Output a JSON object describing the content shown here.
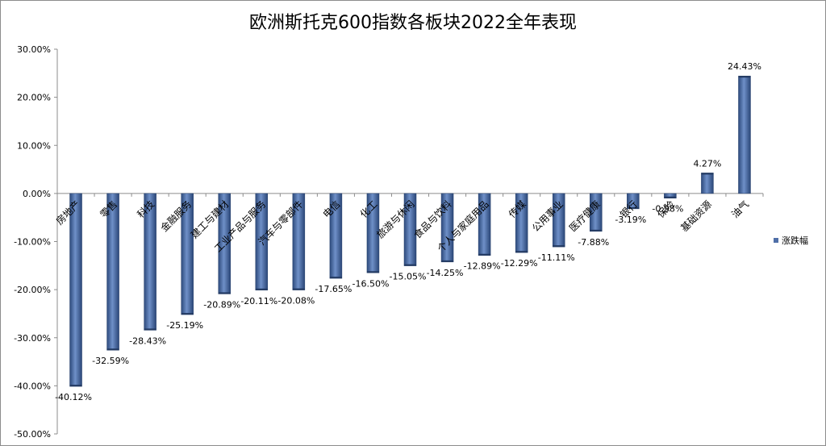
{
  "chart_data": {
    "type": "bar",
    "title": "欧洲斯托克600指数各板块2022全年表现",
    "categories": [
      "房地产",
      "零售",
      "科技",
      "金融服务",
      "建工与建材",
      "工业产品与服务",
      "汽车与零部件",
      "电信",
      "化工",
      "旅游与休闲",
      "食品与饮料",
      "个人与家庭用品",
      "传媒",
      "公用事业",
      "医疗健康",
      "银行",
      "保险",
      "基础资源",
      "油气"
    ],
    "series": [
      {
        "name": "涨跌幅",
        "values": [
          -40.12,
          -32.59,
          -28.43,
          -25.19,
          -20.89,
          -20.11,
          -20.08,
          -17.65,
          -16.5,
          -15.05,
          -14.25,
          -12.89,
          -12.29,
          -11.11,
          -7.88,
          -3.19,
          -0.98,
          4.27,
          24.43
        ],
        "labels": [
          "-40.12%",
          "-32.59%",
          "-28.43%",
          "-25.19%",
          "-20.89%",
          "-20.11%",
          "-20.08%",
          "-17.65%",
          "-16.50%",
          "-15.05%",
          "-14.25%",
          "-12.89%",
          "-12.29%",
          "-11.11%",
          "-7.88%",
          "-3.19%",
          "-0.98%",
          "4.27%",
          "24.43%"
        ]
      }
    ],
    "ylim": [
      -50,
      30
    ],
    "yticks": [
      30,
      20,
      10,
      0,
      -10,
      -20,
      -30,
      -40,
      -50
    ],
    "ytick_labels": [
      "30.00%",
      "20.00%",
      "10.00%",
      "0.00%",
      "-10.00%",
      "-20.00%",
      "-30.00%",
      "-40.00%",
      "-50.00%"
    ],
    "xlabel": "",
    "ylabel": "",
    "grid": false,
    "legend_position": "right",
    "bar_color": "#4f6fa8"
  }
}
